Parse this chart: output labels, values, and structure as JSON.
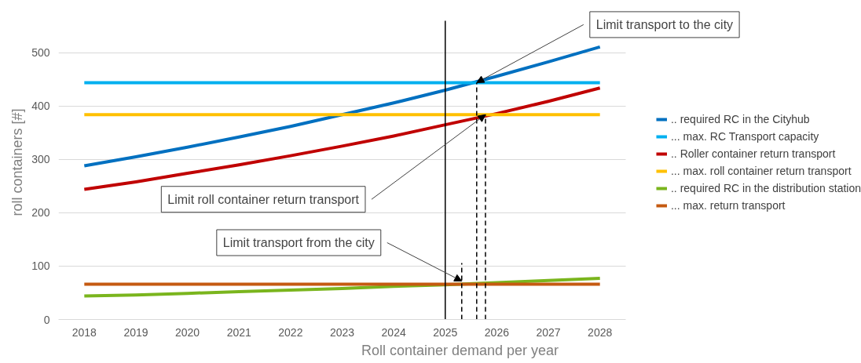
{
  "chart_data": {
    "type": "line",
    "xlabel": "Roll container demand per year",
    "ylabel": "roll containers [#]",
    "x": [
      2018,
      2019,
      2020,
      2021,
      2022,
      2023,
      2024,
      2025,
      2026,
      2027,
      2028
    ],
    "xlim": [
      2017.5,
      2028.5
    ],
    "xticks": [
      2018,
      2019,
      2020,
      2021,
      2022,
      2023,
      2024,
      2025,
      2026,
      2027,
      2028
    ],
    "ylim": [
      0,
      560
    ],
    "yticks": [
      0,
      100,
      200,
      300,
      400,
      500
    ],
    "grid": "y",
    "legend": "right",
    "marker": "none",
    "line_style": "solid",
    "series": [
      {
        "name": ".. required RC in the Cityhub",
        "color": "#0070c0",
        "values": [
          288,
          305,
          323,
          342,
          362,
          384,
          406,
          430,
          456,
          483,
          511
        ]
      },
      {
        "name": "... max. RC Transport capacity",
        "color": "#00b0f0",
        "values": [
          444,
          444,
          444,
          444,
          444,
          444,
          444,
          444,
          444,
          444,
          444
        ]
      },
      {
        "name": ".. Roller container return transport",
        "color": "#c00000",
        "values": [
          244,
          258,
          274,
          290,
          307,
          325,
          344,
          365,
          386,
          409,
          434
        ]
      },
      {
        "name": "... max. roll container return transport",
        "color": "#ffc000",
        "values": [
          384,
          384,
          384,
          384,
          384,
          384,
          384,
          384,
          384,
          384,
          384
        ]
      },
      {
        "name": ".. required RC in the distribution station",
        "color": "#7ab51d",
        "values": [
          44,
          46,
          49,
          52,
          55,
          58,
          62,
          65,
          69,
          73,
          77
        ]
      },
      {
        "name": "... max. return transport",
        "color": "#c55a11",
        "values": [
          66,
          66,
          66,
          66,
          66,
          66,
          66,
          66,
          66,
          66,
          66
        ]
      },
      {
        "color": "#000000",
        "line_style": "dashed",
        "x": [
          2025.32,
          2025.32
        ],
        "values": [
          0,
          106
        ]
      },
      {
        "color": "#000000",
        "line_style": "dashed",
        "x": [
          2025.61,
          2025.61
        ],
        "values": [
          0,
          444
        ]
      },
      {
        "color": "#000000",
        "line_style": "dashed",
        "x": [
          2025.78,
          2025.78
        ],
        "values": [
          0,
          384
        ]
      }
    ],
    "ref_lines": [
      {
        "axis": "x",
        "value": 2025,
        "color": "#000000",
        "line_style": "solid"
      }
    ],
    "annotations": [
      {
        "text": "Limit transport to the city",
        "x": 2025.61,
        "y": 444
      },
      {
        "text": "Limit roll container return transport",
        "x": 2025.78,
        "y": 384
      },
      {
        "text": "Limit transport from the city",
        "x": 2025.32,
        "y": 72
      }
    ]
  }
}
